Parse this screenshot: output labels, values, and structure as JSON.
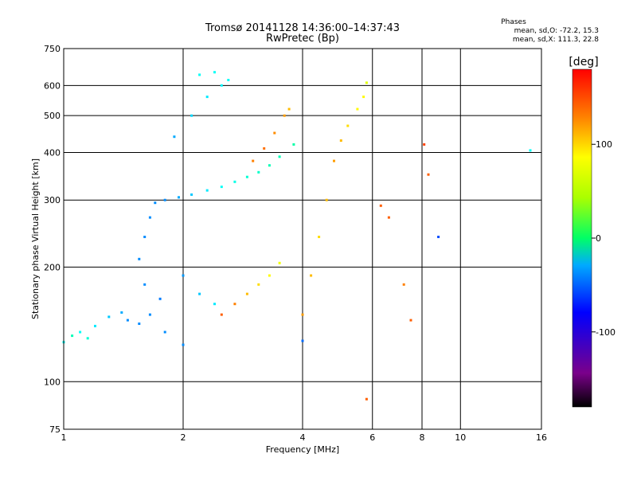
{
  "chart_data": {
    "type": "scatter",
    "title": "Tromsø 20141128 14:36:00–14:37:43",
    "subtitle": "RwPretec (Bp)",
    "xlabel": "Frequency [MHz]",
    "ylabel": "Stationary phase Virtual Height [km]",
    "x_scale": "log",
    "y_scale": "log",
    "xlim": [
      1,
      16
    ],
    "ylim": [
      75,
      750
    ],
    "x_ticks": [
      1,
      2,
      4,
      6,
      8,
      10,
      16
    ],
    "x_tick_labels": [
      "1",
      "2",
      "4",
      "6",
      "8",
      "10",
      "16"
    ],
    "y_ticks": [
      75,
      100,
      200,
      300,
      400,
      500,
      600,
      750
    ],
    "y_tick_labels": [
      "75",
      "100",
      "200",
      "300",
      "400",
      "500",
      "600",
      "750"
    ],
    "grid": true,
    "stats": {
      "title": "Phases",
      "line_o": "mean, sd,O: -72.2, 15.3",
      "line_x": "mean, sd,X: 111.3, 22.8"
    },
    "colorbar": {
      "label": "[deg]",
      "range": [
        -180,
        180
      ],
      "ticks": [
        100,
        0,
        -100
      ],
      "tick_labels": [
        "100",
        "0",
        "-100"
      ]
    },
    "series": [
      {
        "points": [
          [
            1.0,
            127,
            -60
          ],
          [
            1.05,
            132,
            -40
          ],
          [
            1.1,
            135,
            -60
          ],
          [
            1.15,
            130,
            -50
          ],
          [
            1.2,
            140,
            -70
          ],
          [
            1.3,
            148,
            -80
          ],
          [
            1.4,
            152,
            -90
          ],
          [
            1.45,
            145,
            -100
          ],
          [
            1.55,
            142,
            -100
          ],
          [
            1.65,
            150,
            -100
          ],
          [
            1.75,
            165,
            -105
          ],
          [
            1.6,
            180,
            -100
          ],
          [
            1.55,
            210,
            -100
          ],
          [
            1.6,
            240,
            -100
          ],
          [
            1.65,
            270,
            -100
          ],
          [
            1.7,
            295,
            -100
          ],
          [
            1.8,
            300,
            -100
          ],
          [
            1.95,
            305,
            -90
          ],
          [
            2.1,
            310,
            -80
          ],
          [
            2.3,
            318,
            -70
          ],
          [
            2.5,
            325,
            -60
          ],
          [
            2.7,
            335,
            -55
          ],
          [
            2.9,
            345,
            -50
          ],
          [
            3.1,
            355,
            -45
          ],
          [
            3.3,
            370,
            -40
          ],
          [
            3.5,
            390,
            -40
          ],
          [
            3.8,
            420,
            -35
          ],
          [
            1.9,
            440,
            -90
          ],
          [
            2.1,
            500,
            -75
          ],
          [
            2.3,
            560,
            -70
          ],
          [
            2.5,
            600,
            -65
          ],
          [
            2.6,
            620,
            -60
          ],
          [
            2.2,
            640,
            -60
          ],
          [
            2.4,
            650,
            -60
          ],
          [
            2.0,
            190,
            -95
          ],
          [
            2.2,
            170,
            -80
          ],
          [
            2.4,
            160,
            -70
          ],
          [
            1.8,
            135,
            -100
          ],
          [
            2.0,
            125,
            -100
          ],
          [
            4.0,
            150,
            130
          ],
          [
            4.2,
            190,
            120
          ],
          [
            4.4,
            240,
            110
          ],
          [
            4.6,
            300,
            120
          ],
          [
            4.8,
            380,
            130
          ],
          [
            5.0,
            430,
            120
          ],
          [
            5.2,
            470,
            110
          ],
          [
            5.5,
            520,
            100
          ],
          [
            5.7,
            560,
            100
          ],
          [
            5.8,
            610,
            90
          ],
          [
            3.0,
            380,
            140
          ],
          [
            3.2,
            410,
            145
          ],
          [
            3.4,
            450,
            135
          ],
          [
            3.6,
            500,
            130
          ],
          [
            3.7,
            520,
            120
          ],
          [
            3.5,
            205,
            95
          ],
          [
            3.3,
            190,
            100
          ],
          [
            3.1,
            180,
            110
          ],
          [
            2.9,
            170,
            120
          ],
          [
            2.7,
            160,
            140
          ],
          [
            2.5,
            150,
            150
          ],
          [
            6.3,
            290,
            150
          ],
          [
            6.6,
            270,
            150
          ],
          [
            7.2,
            180,
            140
          ],
          [
            7.5,
            145,
            150
          ],
          [
            8.1,
            420,
            160
          ],
          [
            8.3,
            350,
            150
          ],
          [
            8.8,
            240,
            -120
          ],
          [
            4.0,
            128,
            -110
          ],
          [
            5.8,
            90,
            150
          ],
          [
            15.0,
            405,
            -60
          ]
        ]
      }
    ]
  }
}
